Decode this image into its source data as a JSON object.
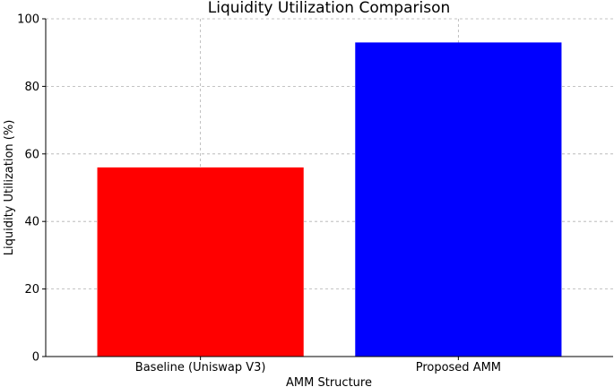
{
  "chart_data": {
    "type": "bar",
    "title": "Liquidity Utilization Comparison",
    "xlabel": "AMM Structure",
    "ylabel": "Liquidity Utilization (%)",
    "categories": [
      "Baseline (Uniswap V3)",
      "Proposed AMM"
    ],
    "values": [
      56,
      93
    ],
    "colors": [
      "#ff0000",
      "#0000ff"
    ],
    "ylim": [
      0,
      100
    ],
    "yticks": [
      0,
      20,
      40,
      60,
      80,
      100
    ],
    "grid": true,
    "legend": "none"
  }
}
